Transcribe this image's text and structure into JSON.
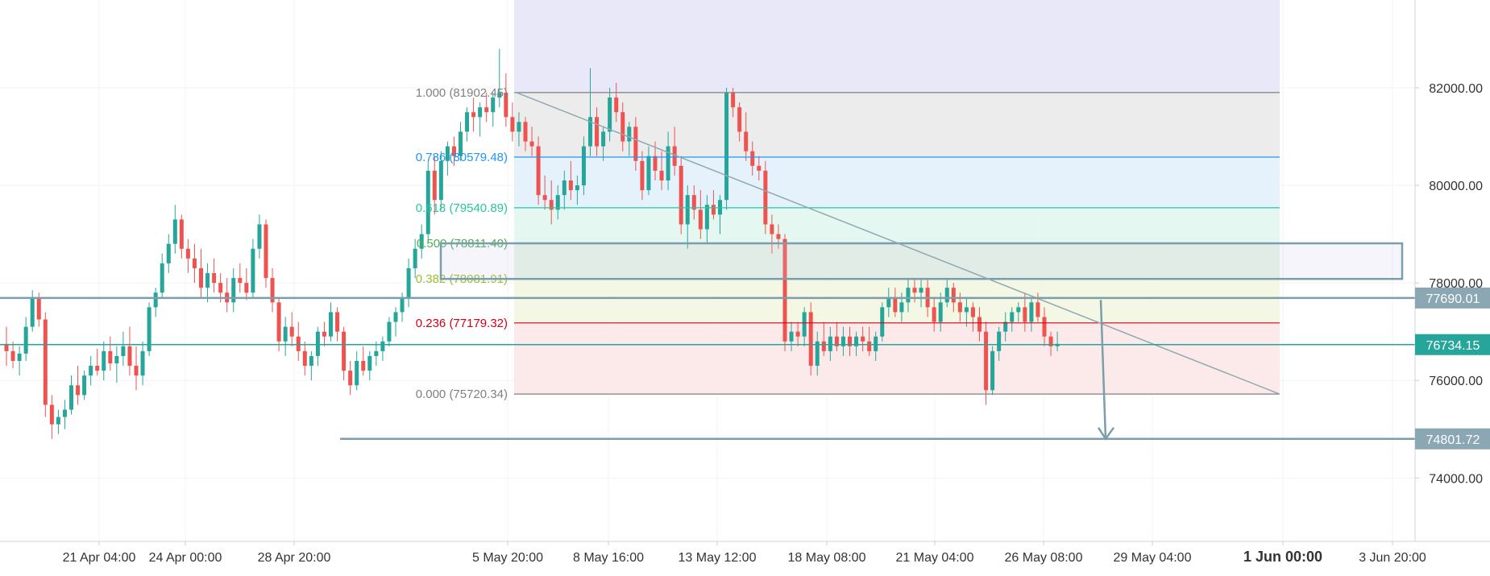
{
  "chart_data": {
    "type": "candlestick",
    "x_ticks": [
      "21 Apr 04:00",
      "24 Apr 00:00",
      "28 Apr 20:00",
      "5 May 20:00",
      "8 May 16:00",
      "13 May 12:00",
      "18 May 08:00",
      "21 May 04:00",
      "26 May 08:00",
      "29 May 04:00",
      "1 Jun 00:00",
      "3 Jun 20:00"
    ],
    "y_ticks": [
      {
        "value": 74000,
        "label": "74000.00"
      },
      {
        "value": 76000,
        "label": "76000.00"
      },
      {
        "value": 78000,
        "label": "78000.00"
      },
      {
        "value": 80000,
        "label": "80000.00"
      },
      {
        "value": 82000,
        "label": "82000.00"
      }
    ],
    "ylim": [
      72700,
      83800
    ],
    "grid": true,
    "colors": {
      "up": "#26a69a",
      "down": "#ef5350",
      "level_line": "#7a9eab",
      "axis_text": "#333333"
    },
    "fibonacci": {
      "levels": [
        {
          "ratio": "1.000",
          "price": 81902.45,
          "label": "1.000 (81902.45)",
          "color": "#808080",
          "band_fill": "#e9e9e9"
        },
        {
          "ratio": "0.786",
          "price": 80579.48,
          "label": "0.786 (80579.48)",
          "color": "#2196f3",
          "band_fill": "#e1f0fb"
        },
        {
          "ratio": "0.618",
          "price": 79540.89,
          "label": "0.618 (79540.89)",
          "color": "#26c6a0",
          "band_fill": "#e1f6ee"
        },
        {
          "ratio": "0.500",
          "price": 78811.4,
          "label": "0.500 (78811.40)",
          "color": "#4caf50",
          "band_fill": "#e2f2df"
        },
        {
          "ratio": "0.382",
          "price": 78081.91,
          "label": "0.382 (78081.91)",
          "color": "#9bbf29",
          "band_fill": "#f1f6df"
        },
        {
          "ratio": "0.236",
          "price": 77179.32,
          "label": "0.236 (77179.32)",
          "color": "#d0021b",
          "band_fill": "#fbe6e6"
        },
        {
          "ratio": "0.000",
          "price": 75720.34,
          "label": "0.000 (75720.34)",
          "color": "#808080",
          "band_fill": null
        }
      ],
      "top_band_fill": "#e8e8f8"
    },
    "price_levels": [
      {
        "price": 77690.01,
        "label": "77690.01",
        "badge_color": "#8aa7b3"
      },
      {
        "price": 76734.15,
        "label": "76734.15",
        "badge_color": "#26a69a"
      },
      {
        "price": 74801.72,
        "label": "74801.72",
        "badge_color": "#8aa7b3"
      }
    ],
    "trendline": {
      "from": {
        "x": "5 May 20:00",
        "y": 81902
      },
      "to": {
        "x": "1 Jun 00:00",
        "y": 75720
      }
    },
    "rectangle_zone": {
      "y_top": 78811,
      "y_bottom": 78081
    },
    "projection_arrow": {
      "from": 77650,
      "to": 74801
    },
    "candles": [
      {
        "o": 76750,
        "h": 77100,
        "l": 76300,
        "c": 76600
      },
      {
        "o": 76600,
        "h": 76800,
        "l": 76250,
        "c": 76400
      },
      {
        "o": 76400,
        "h": 76700,
        "l": 76100,
        "c": 76550
      },
      {
        "o": 76550,
        "h": 77300,
        "l": 76400,
        "c": 77100
      },
      {
        "o": 77100,
        "h": 77850,
        "l": 77000,
        "c": 77700
      },
      {
        "o": 77700,
        "h": 77800,
        "l": 77100,
        "c": 77250
      },
      {
        "o": 77250,
        "h": 77400,
        "l": 75250,
        "c": 75500
      },
      {
        "o": 75500,
        "h": 75700,
        "l": 74800,
        "c": 75100
      },
      {
        "o": 75100,
        "h": 75400,
        "l": 74900,
        "c": 75250
      },
      {
        "o": 75250,
        "h": 75600,
        "l": 75000,
        "c": 75400
      },
      {
        "o": 75400,
        "h": 76100,
        "l": 75300,
        "c": 75900
      },
      {
        "o": 75900,
        "h": 76300,
        "l": 75500,
        "c": 75700
      },
      {
        "o": 75700,
        "h": 76200,
        "l": 75600,
        "c": 76100
      },
      {
        "o": 76100,
        "h": 76500,
        "l": 75900,
        "c": 76300
      },
      {
        "o": 76300,
        "h": 76650,
        "l": 76100,
        "c": 76200
      },
      {
        "o": 76200,
        "h": 76800,
        "l": 76000,
        "c": 76600
      },
      {
        "o": 76600,
        "h": 76900,
        "l": 76200,
        "c": 76350
      },
      {
        "o": 76350,
        "h": 76700,
        "l": 75950,
        "c": 76500
      },
      {
        "o": 76500,
        "h": 77000,
        "l": 76300,
        "c": 76700
      },
      {
        "o": 76700,
        "h": 77100,
        "l": 76100,
        "c": 76300
      },
      {
        "o": 76300,
        "h": 76700,
        "l": 75800,
        "c": 76100
      },
      {
        "o": 76100,
        "h": 76800,
        "l": 75900,
        "c": 76600
      },
      {
        "o": 76600,
        "h": 77600,
        "l": 76500,
        "c": 77500
      },
      {
        "o": 77500,
        "h": 77900,
        "l": 77300,
        "c": 77800
      },
      {
        "o": 77800,
        "h": 78600,
        "l": 77700,
        "c": 78400
      },
      {
        "o": 78400,
        "h": 79000,
        "l": 78200,
        "c": 78800
      },
      {
        "o": 78800,
        "h": 79600,
        "l": 78600,
        "c": 79300
      },
      {
        "o": 79300,
        "h": 79400,
        "l": 78500,
        "c": 78700
      },
      {
        "o": 78700,
        "h": 78900,
        "l": 78200,
        "c": 78500
      },
      {
        "o": 78500,
        "h": 78800,
        "l": 78000,
        "c": 78300
      },
      {
        "o": 78300,
        "h": 78700,
        "l": 77700,
        "c": 77900
      },
      {
        "o": 77900,
        "h": 78400,
        "l": 77600,
        "c": 78200
      },
      {
        "o": 78200,
        "h": 78500,
        "l": 77800,
        "c": 78000
      },
      {
        "o": 78000,
        "h": 78200,
        "l": 77600,
        "c": 77800
      },
      {
        "o": 77800,
        "h": 78100,
        "l": 77400,
        "c": 77600
      },
      {
        "o": 77600,
        "h": 78300,
        "l": 77400,
        "c": 78100
      },
      {
        "o": 78100,
        "h": 78400,
        "l": 77800,
        "c": 78000
      },
      {
        "o": 78000,
        "h": 78300,
        "l": 77650,
        "c": 77800
      },
      {
        "o": 77800,
        "h": 78900,
        "l": 77700,
        "c": 78700
      },
      {
        "o": 78700,
        "h": 79400,
        "l": 78500,
        "c": 79200
      },
      {
        "o": 79200,
        "h": 79300,
        "l": 77900,
        "c": 78100
      },
      {
        "o": 78100,
        "h": 78300,
        "l": 77400,
        "c": 77600
      },
      {
        "o": 77600,
        "h": 77700,
        "l": 76600,
        "c": 76800
      },
      {
        "o": 76800,
        "h": 77300,
        "l": 76500,
        "c": 77100
      },
      {
        "o": 77100,
        "h": 77400,
        "l": 76700,
        "c": 76900
      },
      {
        "o": 76900,
        "h": 77200,
        "l": 76400,
        "c": 76600
      },
      {
        "o": 76600,
        "h": 76800,
        "l": 76100,
        "c": 76300
      },
      {
        "o": 76300,
        "h": 76600,
        "l": 76000,
        "c": 76500
      },
      {
        "o": 76500,
        "h": 77100,
        "l": 76300,
        "c": 77000
      },
      {
        "o": 77000,
        "h": 77200,
        "l": 76700,
        "c": 76900
      },
      {
        "o": 76900,
        "h": 77600,
        "l": 76800,
        "c": 77400
      },
      {
        "o": 77400,
        "h": 77500,
        "l": 76800,
        "c": 77000
      },
      {
        "o": 77000,
        "h": 77100,
        "l": 76000,
        "c": 76200
      },
      {
        "o": 76200,
        "h": 76400,
        "l": 75700,
        "c": 75900
      },
      {
        "o": 75900,
        "h": 76600,
        "l": 75800,
        "c": 76400
      },
      {
        "o": 76400,
        "h": 76700,
        "l": 76100,
        "c": 76200
      },
      {
        "o": 76200,
        "h": 76600,
        "l": 76000,
        "c": 76500
      },
      {
        "o": 76500,
        "h": 76800,
        "l": 76300,
        "c": 76600
      },
      {
        "o": 76600,
        "h": 76900,
        "l": 76400,
        "c": 76800
      },
      {
        "o": 76800,
        "h": 77300,
        "l": 76700,
        "c": 77200
      },
      {
        "o": 77200,
        "h": 77500,
        "l": 76900,
        "c": 77400
      },
      {
        "o": 77400,
        "h": 77800,
        "l": 77200,
        "c": 77700
      },
      {
        "o": 77700,
        "h": 78500,
        "l": 77500,
        "c": 78300
      },
      {
        "o": 78300,
        "h": 78900,
        "l": 78100,
        "c": 78700
      },
      {
        "o": 78700,
        "h": 79200,
        "l": 78500,
        "c": 79000
      },
      {
        "o": 79000,
        "h": 80500,
        "l": 78800,
        "c": 80300
      },
      {
        "o": 80300,
        "h": 80600,
        "l": 79400,
        "c": 79700
      },
      {
        "o": 79700,
        "h": 80700,
        "l": 79500,
        "c": 80500
      },
      {
        "o": 80500,
        "h": 80900,
        "l": 80200,
        "c": 80800
      },
      {
        "o": 80800,
        "h": 81000,
        "l": 80400,
        "c": 80600
      },
      {
        "o": 80600,
        "h": 81300,
        "l": 80500,
        "c": 81100
      },
      {
        "o": 81100,
        "h": 81600,
        "l": 80900,
        "c": 81500
      },
      {
        "o": 81500,
        "h": 81800,
        "l": 81100,
        "c": 81400
      },
      {
        "o": 81400,
        "h": 81700,
        "l": 81000,
        "c": 81600
      },
      {
        "o": 81600,
        "h": 81900,
        "l": 81300,
        "c": 81500
      },
      {
        "o": 81500,
        "h": 81900,
        "l": 81200,
        "c": 81800
      },
      {
        "o": 81800,
        "h": 82800,
        "l": 81600,
        "c": 81900
      },
      {
        "o": 81900,
        "h": 82300,
        "l": 81200,
        "c": 81400
      },
      {
        "o": 81400,
        "h": 81700,
        "l": 80900,
        "c": 81100
      },
      {
        "o": 81100,
        "h": 81500,
        "l": 80800,
        "c": 81300
      },
      {
        "o": 81300,
        "h": 81400,
        "l": 80700,
        "c": 80900
      },
      {
        "o": 80900,
        "h": 81200,
        "l": 80600,
        "c": 80800
      },
      {
        "o": 80800,
        "h": 81000,
        "l": 79600,
        "c": 79800
      },
      {
        "o": 79800,
        "h": 80200,
        "l": 79500,
        "c": 79700
      },
      {
        "o": 79700,
        "h": 80100,
        "l": 79200,
        "c": 79500
      },
      {
        "o": 79500,
        "h": 80000,
        "l": 79300,
        "c": 79800
      },
      {
        "o": 79800,
        "h": 80300,
        "l": 79500,
        "c": 80100
      },
      {
        "o": 80100,
        "h": 80500,
        "l": 79700,
        "c": 79900
      },
      {
        "o": 79900,
        "h": 80200,
        "l": 79600,
        "c": 80000
      },
      {
        "o": 80000,
        "h": 81000,
        "l": 79800,
        "c": 80800
      },
      {
        "o": 80800,
        "h": 82400,
        "l": 80600,
        "c": 81400
      },
      {
        "o": 81400,
        "h": 81600,
        "l": 80600,
        "c": 80800
      },
      {
        "o": 80800,
        "h": 81200,
        "l": 80500,
        "c": 81100
      },
      {
        "o": 81100,
        "h": 82000,
        "l": 80900,
        "c": 81800
      },
      {
        "o": 81800,
        "h": 82100,
        "l": 81300,
        "c": 81500
      },
      {
        "o": 81500,
        "h": 81700,
        "l": 80700,
        "c": 80900
      },
      {
        "o": 80900,
        "h": 81300,
        "l": 80600,
        "c": 81200
      },
      {
        "o": 81200,
        "h": 81400,
        "l": 80300,
        "c": 80500
      },
      {
        "o": 80500,
        "h": 80700,
        "l": 79700,
        "c": 79900
      },
      {
        "o": 79900,
        "h": 80800,
        "l": 79800,
        "c": 80600
      },
      {
        "o": 80600,
        "h": 80900,
        "l": 80100,
        "c": 80300
      },
      {
        "o": 80300,
        "h": 80700,
        "l": 79900,
        "c": 80100
      },
      {
        "o": 80100,
        "h": 81100,
        "l": 79900,
        "c": 80800
      },
      {
        "o": 80800,
        "h": 81200,
        "l": 80200,
        "c": 80400
      },
      {
        "o": 80400,
        "h": 80600,
        "l": 79000,
        "c": 79200
      },
      {
        "o": 79200,
        "h": 80000,
        "l": 78700,
        "c": 79800
      },
      {
        "o": 79800,
        "h": 80000,
        "l": 79300,
        "c": 79500
      },
      {
        "o": 79500,
        "h": 79900,
        "l": 78900,
        "c": 79100
      },
      {
        "o": 79100,
        "h": 79800,
        "l": 78800,
        "c": 79600
      },
      {
        "o": 79600,
        "h": 79900,
        "l": 79300,
        "c": 79400
      },
      {
        "o": 79400,
        "h": 79800,
        "l": 79000,
        "c": 79700
      },
      {
        "o": 79700,
        "h": 82000,
        "l": 79500,
        "c": 81900
      },
      {
        "o": 81900,
        "h": 82000,
        "l": 81400,
        "c": 81600
      },
      {
        "o": 81600,
        "h": 81700,
        "l": 80900,
        "c": 81100
      },
      {
        "o": 81100,
        "h": 81500,
        "l": 80500,
        "c": 80700
      },
      {
        "o": 80700,
        "h": 80900,
        "l": 80200,
        "c": 80400
      },
      {
        "o": 80400,
        "h": 80600,
        "l": 80100,
        "c": 80300
      },
      {
        "o": 80300,
        "h": 80500,
        "l": 79000,
        "c": 79200
      },
      {
        "o": 79200,
        "h": 79400,
        "l": 78600,
        "c": 79000
      },
      {
        "o": 79000,
        "h": 79200,
        "l": 78700,
        "c": 78900
      },
      {
        "o": 78900,
        "h": 79000,
        "l": 76600,
        "c": 76800
      },
      {
        "o": 76800,
        "h": 77200,
        "l": 76600,
        "c": 77000
      },
      {
        "o": 77000,
        "h": 77200,
        "l": 76700,
        "c": 76900
      },
      {
        "o": 76900,
        "h": 77500,
        "l": 76700,
        "c": 77400
      },
      {
        "o": 77400,
        "h": 77600,
        "l": 76100,
        "c": 76300
      },
      {
        "o": 76300,
        "h": 77000,
        "l": 76100,
        "c": 76800
      },
      {
        "o": 76800,
        "h": 77200,
        "l": 76500,
        "c": 76600
      },
      {
        "o": 76600,
        "h": 77100,
        "l": 76400,
        "c": 76900
      },
      {
        "o": 76900,
        "h": 77200,
        "l": 76600,
        "c": 76700
      },
      {
        "o": 76700,
        "h": 77100,
        "l": 76500,
        "c": 76900
      },
      {
        "o": 76900,
        "h": 77100,
        "l": 76500,
        "c": 76700
      },
      {
        "o": 76700,
        "h": 77000,
        "l": 76500,
        "c": 76900
      },
      {
        "o": 76900,
        "h": 77100,
        "l": 76600,
        "c": 76800
      },
      {
        "o": 76800,
        "h": 77100,
        "l": 76500,
        "c": 76600
      },
      {
        "o": 76600,
        "h": 77000,
        "l": 76400,
        "c": 76900
      },
      {
        "o": 76900,
        "h": 77600,
        "l": 76800,
        "c": 77500
      },
      {
        "o": 77500,
        "h": 77900,
        "l": 77300,
        "c": 77700
      },
      {
        "o": 77700,
        "h": 77900,
        "l": 77300,
        "c": 77400
      },
      {
        "o": 77400,
        "h": 77800,
        "l": 77200,
        "c": 77600
      },
      {
        "o": 77600,
        "h": 78100,
        "l": 77400,
        "c": 77900
      },
      {
        "o": 77900,
        "h": 78100,
        "l": 77600,
        "c": 77800
      },
      {
        "o": 77800,
        "h": 78100,
        "l": 77500,
        "c": 77900
      },
      {
        "o": 77900,
        "h": 78100,
        "l": 77300,
        "c": 77500
      },
      {
        "o": 77500,
        "h": 77700,
        "l": 77000,
        "c": 77200
      },
      {
        "o": 77200,
        "h": 77800,
        "l": 77000,
        "c": 77600
      },
      {
        "o": 77600,
        "h": 78100,
        "l": 77500,
        "c": 77900
      },
      {
        "o": 77900,
        "h": 78000,
        "l": 77400,
        "c": 77600
      },
      {
        "o": 77600,
        "h": 77800,
        "l": 77200,
        "c": 77400
      },
      {
        "o": 77400,
        "h": 77700,
        "l": 77100,
        "c": 77500
      },
      {
        "o": 77500,
        "h": 77600,
        "l": 77000,
        "c": 77300
      },
      {
        "o": 77300,
        "h": 77500,
        "l": 76800,
        "c": 77000
      },
      {
        "o": 77000,
        "h": 77200,
        "l": 75500,
        "c": 75800
      },
      {
        "o": 75800,
        "h": 76700,
        "l": 75700,
        "c": 76600
      },
      {
        "o": 76600,
        "h": 77100,
        "l": 76400,
        "c": 77000
      },
      {
        "o": 77000,
        "h": 77400,
        "l": 76800,
        "c": 77200
      },
      {
        "o": 77200,
        "h": 77500,
        "l": 77000,
        "c": 77400
      },
      {
        "o": 77400,
        "h": 77600,
        "l": 77200,
        "c": 77500
      },
      {
        "o": 77500,
        "h": 77800,
        "l": 77000,
        "c": 77200
      },
      {
        "o": 77200,
        "h": 77700,
        "l": 77000,
        "c": 77600
      },
      {
        "o": 77600,
        "h": 77800,
        "l": 77200,
        "c": 77300
      },
      {
        "o": 77300,
        "h": 77500,
        "l": 76700,
        "c": 76900
      },
      {
        "o": 76900,
        "h": 77000,
        "l": 76500,
        "c": 76700
      },
      {
        "o": 76700,
        "h": 77000,
        "l": 76600,
        "c": 76750
      }
    ]
  }
}
